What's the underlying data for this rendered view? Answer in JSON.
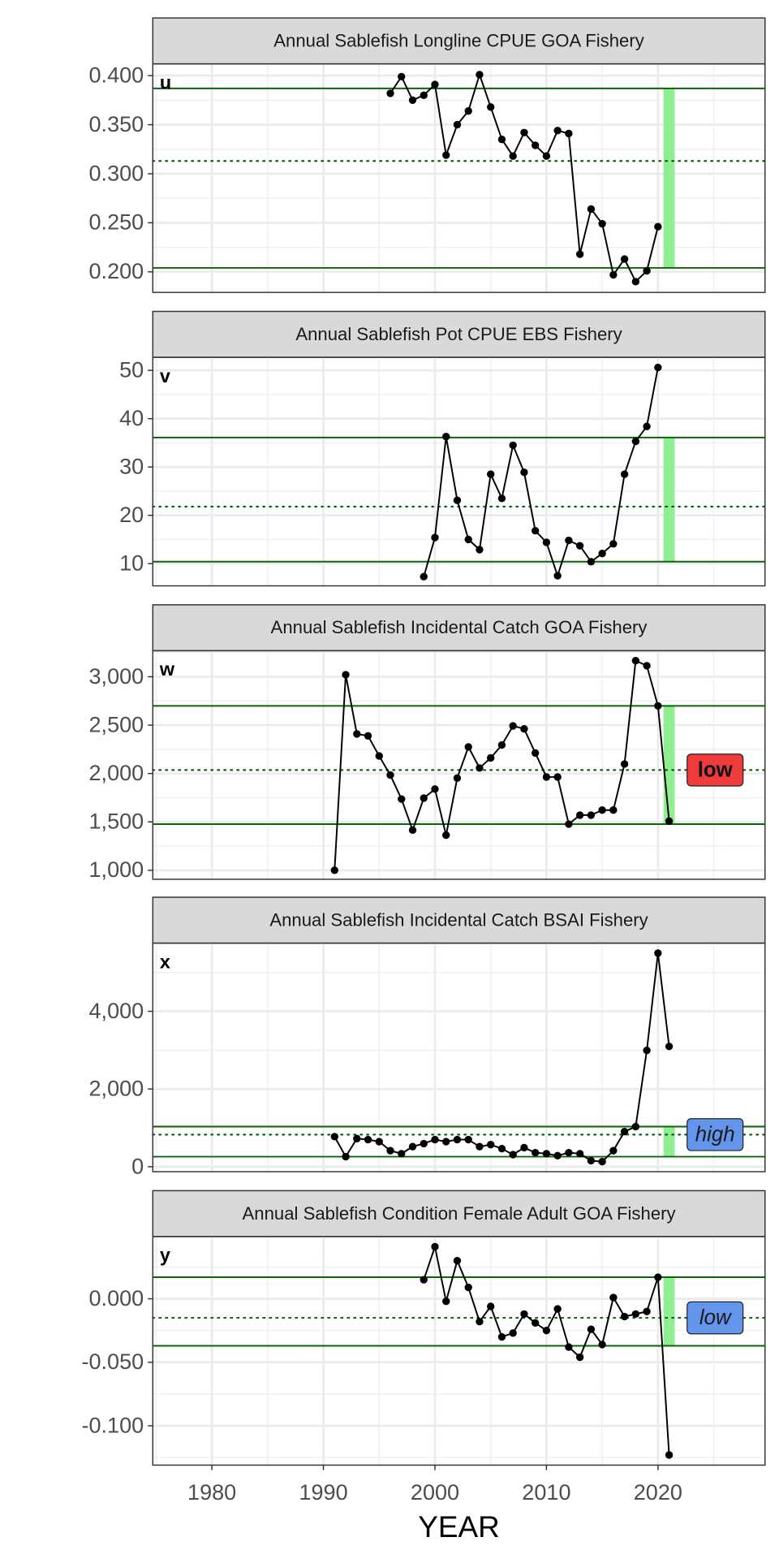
{
  "chart_data": [
    {
      "type": "line",
      "title": "Annual Sablefish Longline CPUE GOA Fishery",
      "panel_label": "u",
      "x": [
        1996,
        1997,
        1998,
        1999,
        2000,
        2001,
        2002,
        2003,
        2004,
        2005,
        2006,
        2007,
        2008,
        2009,
        2010,
        2011,
        2012,
        2013,
        2014,
        2015,
        2016,
        2017,
        2018,
        2019,
        2020
      ],
      "values": [
        0.382,
        0.399,
        0.375,
        0.38,
        0.391,
        0.319,
        0.35,
        0.364,
        0.401,
        0.368,
        0.335,
        0.318,
        0.342,
        0.329,
        0.318,
        0.344,
        0.341,
        0.218,
        0.264,
        0.249,
        0.197,
        0.213,
        0.19,
        0.201,
        0.246
      ],
      "upper": 0.387,
      "mean": 0.313,
      "lower": 0.204,
      "highlight_x": [
        2020.5,
        2021.5
      ],
      "ylim": [
        0.179,
        0.412
      ],
      "yticks": [
        {
          "value": 0.2,
          "label": "0.200"
        },
        {
          "value": 0.25,
          "label": "0.250"
        },
        {
          "value": 0.3,
          "label": "0.300"
        },
        {
          "value": 0.35,
          "label": "0.350"
        },
        {
          "value": 0.4,
          "label": "0.400"
        }
      ]
    },
    {
      "type": "line",
      "title": "Annual Sablefish Pot CPUE EBS Fishery",
      "panel_label": "v",
      "x": [
        1999,
        2000,
        2001,
        2002,
        2003,
        2004,
        2005,
        2006,
        2007,
        2008,
        2009,
        2010,
        2011,
        2012,
        2013,
        2014,
        2015,
        2016,
        2017,
        2018,
        2019,
        2020
      ],
      "values": [
        7.3,
        15.4,
        36.3,
        23.1,
        15.0,
        12.9,
        28.5,
        23.5,
        34.5,
        28.9,
        16.8,
        14.4,
        7.5,
        14.8,
        13.7,
        10.4,
        12.1,
        14.1,
        28.5,
        35.3,
        38.4,
        50.6
      ],
      "upper": 36.1,
      "mean": 21.8,
      "lower": 10.4,
      "highlight_x": [
        2020.5,
        2021.5
      ],
      "ylim": [
        5.4,
        52.7
      ],
      "yticks": [
        10,
        20,
        30,
        40,
        50
      ]
    },
    {
      "type": "line",
      "title": "Annual Sablefish Incidental Catch GOA Fishery",
      "panel_label": "w",
      "x": [
        1991,
        1992,
        1993,
        1994,
        1995,
        1996,
        1997,
        1998,
        1999,
        2000,
        2001,
        2002,
        2003,
        2004,
        2005,
        2006,
        2007,
        2008,
        2009,
        2010,
        2011,
        2012,
        2013,
        2014,
        2015,
        2016,
        2017,
        2018,
        2019,
        2020,
        2021
      ],
      "values": [
        1000,
        3021,
        2409,
        2389,
        2181,
        1984,
        1736,
        1415,
        1746,
        1839,
        1363,
        1953,
        2275,
        2057,
        2161,
        2295,
        2492,
        2461,
        2212,
        1964,
        1964,
        1477,
        1570,
        1570,
        1622,
        1622,
        2098,
        3166,
        3114,
        2699,
        1508
      ],
      "upper": 2699,
      "mean": 2036,
      "lower": 1477,
      "highlight_x": [
        2020.5,
        2021.5
      ],
      "ylim": [
        907,
        3269
      ],
      "yticks": [
        {
          "value": 1000,
          "label": "1,000"
        },
        {
          "value": 1500,
          "label": "1,500"
        },
        {
          "value": 2000,
          "label": "2,000"
        },
        {
          "value": 2500,
          "label": "2,500"
        },
        {
          "value": 3000,
          "label": "3,000"
        }
      ],
      "badge": {
        "label": "low",
        "color": "#f03b3b",
        "italic": false
      }
    },
    {
      "type": "line",
      "title": "Annual Sablefish Incidental Catch BSAI Fishery",
      "panel_label": "x",
      "x": [
        1991,
        1992,
        1993,
        1994,
        1995,
        1996,
        1997,
        1998,
        1999,
        2000,
        2001,
        2002,
        2003,
        2004,
        2005,
        2006,
        2007,
        2008,
        2009,
        2010,
        2011,
        2012,
        2013,
        2014,
        2015,
        2016,
        2017,
        2018,
        2019,
        2020,
        2021
      ],
      "values": [
        774,
        258,
        723,
        697,
        645,
        413,
        335,
        516,
        594,
        697,
        645,
        697,
        697,
        516,
        568,
        465,
        310,
        490,
        361,
        335,
        284,
        361,
        335,
        155,
        129,
        413,
        903,
        1032,
        2994,
        5497,
        3097
      ],
      "upper": 1032,
      "mean": 826,
      "lower": 258,
      "highlight_x": [
        2020.5,
        2021.5
      ],
      "ylim": [
        -129,
        5755
      ],
      "yticks": [
        0,
        {
          "value": 2000,
          "label": "2,000"
        },
        {
          "value": 4000,
          "label": "4,000"
        }
      ],
      "badge": {
        "label": "high",
        "color": "#6495ed",
        "italic": true
      }
    },
    {
      "type": "line",
      "title": "Annual Sablefish Condition Female Adult GOA Fishery",
      "panel_label": "y",
      "x": [
        1999,
        2000,
        2001,
        2002,
        2003,
        2004,
        2005,
        2006,
        2007,
        2008,
        2009,
        2010,
        2011,
        2012,
        2013,
        2014,
        2015,
        2016,
        2017,
        2018,
        2019,
        2020,
        2021
      ],
      "values": [
        0.015,
        0.041,
        -0.002,
        0.03,
        0.009,
        -0.018,
        -0.006,
        -0.03,
        -0.027,
        -0.012,
        -0.019,
        -0.025,
        -0.008,
        -0.038,
        -0.046,
        -0.024,
        -0.036,
        0.001,
        -0.014,
        -0.012,
        -0.01,
        0.017,
        -0.123
      ],
      "upper": 0.017,
      "mean": -0.015,
      "lower": -0.037,
      "highlight_x": [
        2020.5,
        2021.5
      ],
      "ylim": [
        -0.131,
        0.049
      ],
      "yticks": [
        {
          "value": -0.1,
          "label": "-0.100"
        },
        {
          "value": -0.05,
          "label": "-0.050"
        },
        {
          "value": 0,
          "label": "0.000"
        }
      ],
      "badge": {
        "label": "low",
        "color": "#6495ed",
        "italic": true
      }
    }
  ],
  "x_axis": {
    "label": "YEAR",
    "xlim": [
      1974.7,
      2029.6
    ],
    "xticks": [
      1980,
      1990,
      2000,
      2010,
      2020
    ]
  },
  "style": {
    "line_color": "#000000",
    "ref_color": "#0a640a",
    "band_color": "#90ee90"
  }
}
